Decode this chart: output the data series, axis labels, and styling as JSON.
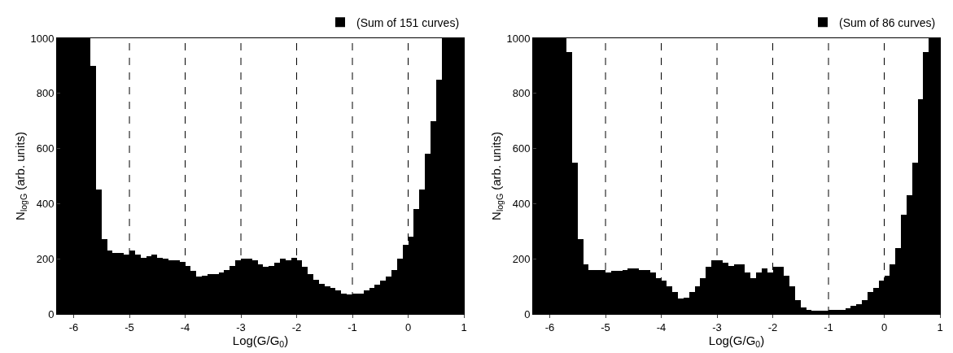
{
  "chart_data": [
    {
      "type": "histogram",
      "xlabel": "Log(G/G$_{0}$)",
      "ylabel": "N$_{logG}$ (arb. units)",
      "bins": [
        -6.3,
        -6.2,
        -6.1,
        -6.0,
        -5.9,
        -5.8,
        -5.7,
        -5.6,
        -5.5,
        -5.4,
        -5.3,
        -5.2,
        -5.1,
        -5.0,
        -4.9,
        -4.8,
        -4.7,
        -4.6,
        -4.5,
        -4.4,
        -4.3,
        -4.2,
        -4.1,
        -4.0,
        -3.9,
        -3.8,
        -3.7,
        -3.6,
        -3.5,
        -3.4,
        -3.3,
        -3.2,
        -3.1,
        -3.0,
        -2.9,
        -2.8,
        -2.7,
        -2.6,
        -2.5,
        -2.4,
        -2.3,
        -2.2,
        -2.1,
        -2.0,
        -1.9,
        -1.8,
        -1.7,
        -1.6,
        -1.5,
        -1.4,
        -1.3,
        -1.2,
        -1.1,
        -1.0,
        -0.9,
        -0.8,
        -0.7,
        -0.6,
        -0.5,
        -0.4,
        -0.3,
        -0.2,
        -0.1,
        0.0,
        0.1,
        0.2,
        0.3,
        0.4,
        0.5,
        0.6,
        0.7,
        0.8,
        0.9,
        1.0
      ],
      "series": [
        {
          "name": "(Sum of 151 curves)",
          "color": "#000000",
          "values": [
            1000,
            1000,
            1000,
            1000,
            1000,
            1000,
            900,
            450,
            270,
            230,
            220,
            220,
            215,
            230,
            215,
            205,
            210,
            215,
            205,
            200,
            195,
            195,
            190,
            175,
            155,
            135,
            140,
            145,
            145,
            150,
            160,
            175,
            195,
            200,
            200,
            195,
            180,
            170,
            175,
            185,
            200,
            195,
            205,
            195,
            170,
            145,
            125,
            110,
            100,
            95,
            85,
            75,
            70,
            75,
            75,
            85,
            95,
            105,
            120,
            135,
            160,
            200,
            250,
            280,
            380,
            450,
            580,
            700,
            850,
            1000,
            1000,
            1000,
            1000
          ]
        }
      ],
      "xlim": [
        -6.3,
        1
      ],
      "xticks": [
        -6,
        -5,
        -4,
        -3,
        -2,
        -1,
        0,
        1
      ],
      "ylim": [
        0,
        1000
      ],
      "yticks": [
        0,
        200,
        400,
        600,
        800,
        1000
      ],
      "ref_lines": [
        {
          "axis": "x",
          "value": -5,
          "color": "#000000",
          "line_style": "dashed"
        },
        {
          "axis": "x",
          "value": -4,
          "color": "#000000",
          "line_style": "dashed"
        },
        {
          "axis": "x",
          "value": -3,
          "color": "#000000",
          "line_style": "dashed"
        },
        {
          "axis": "x",
          "value": -2,
          "color": "#000000",
          "line_style": "dashed"
        },
        {
          "axis": "x",
          "value": -1,
          "color": "#000000",
          "line_style": "dashed"
        },
        {
          "axis": "x",
          "value": 0,
          "color": "#000000",
          "line_style": "dashed"
        }
      ],
      "grid": false,
      "legend": "top right"
    },
    {
      "type": "histogram",
      "xlabel": "Log(G/G$_{0}$)",
      "ylabel": "N$_{logG}$ (arb. units)",
      "bins": [
        -6.3,
        -6.2,
        -6.1,
        -6.0,
        -5.9,
        -5.8,
        -5.7,
        -5.6,
        -5.5,
        -5.4,
        -5.3,
        -5.2,
        -5.1,
        -5.0,
        -4.9,
        -4.8,
        -4.7,
        -4.6,
        -4.5,
        -4.4,
        -4.3,
        -4.2,
        -4.1,
        -4.0,
        -3.9,
        -3.8,
        -3.7,
        -3.6,
        -3.5,
        -3.4,
        -3.3,
        -3.2,
        -3.1,
        -3.0,
        -2.9,
        -2.8,
        -2.7,
        -2.6,
        -2.5,
        -2.4,
        -2.3,
        -2.2,
        -2.1,
        -2.0,
        -1.9,
        -1.8,
        -1.7,
        -1.6,
        -1.5,
        -1.4,
        -1.3,
        -1.2,
        -1.1,
        -1.0,
        -0.9,
        -0.8,
        -0.7,
        -0.6,
        -0.5,
        -0.4,
        -0.3,
        -0.2,
        -0.1,
        0.0,
        0.1,
        0.2,
        0.3,
        0.4,
        0.5,
        0.6,
        0.7,
        0.8,
        0.9,
        1.0
      ],
      "series": [
        {
          "name": "(Sum of 86 curves)",
          "color": "#000000",
          "values": [
            1000,
            1000,
            1000,
            1000,
            1000,
            1000,
            950,
            550,
            270,
            180,
            160,
            160,
            160,
            150,
            155,
            155,
            160,
            165,
            165,
            160,
            160,
            150,
            130,
            120,
            100,
            80,
            55,
            60,
            80,
            100,
            130,
            170,
            195,
            195,
            185,
            175,
            180,
            180,
            150,
            130,
            150,
            165,
            150,
            170,
            170,
            140,
            100,
            50,
            25,
            15,
            12,
            12,
            12,
            15,
            15,
            15,
            22,
            30,
            35,
            50,
            80,
            95,
            120,
            140,
            180,
            240,
            360,
            430,
            550,
            780,
            950,
            1000,
            1000
          ]
        }
      ],
      "xlim": [
        -6.3,
        1
      ],
      "xticks": [
        -6,
        -5,
        -4,
        -3,
        -2,
        -1,
        0,
        1
      ],
      "ylim": [
        0,
        1000
      ],
      "yticks": [
        0,
        200,
        400,
        600,
        800,
        1000
      ],
      "ref_lines": [
        {
          "axis": "x",
          "value": -5,
          "color": "#000000",
          "line_style": "dashed"
        },
        {
          "axis": "x",
          "value": -4,
          "color": "#000000",
          "line_style": "dashed"
        },
        {
          "axis": "x",
          "value": -3,
          "color": "#000000",
          "line_style": "dashed"
        },
        {
          "axis": "x",
          "value": -2,
          "color": "#000000",
          "line_style": "dashed"
        },
        {
          "axis": "x",
          "value": -1,
          "color": "#000000",
          "line_style": "dashed"
        },
        {
          "axis": "x",
          "value": 0,
          "color": "#000000",
          "line_style": "dashed"
        }
      ],
      "grid": false,
      "legend": "top right"
    }
  ]
}
